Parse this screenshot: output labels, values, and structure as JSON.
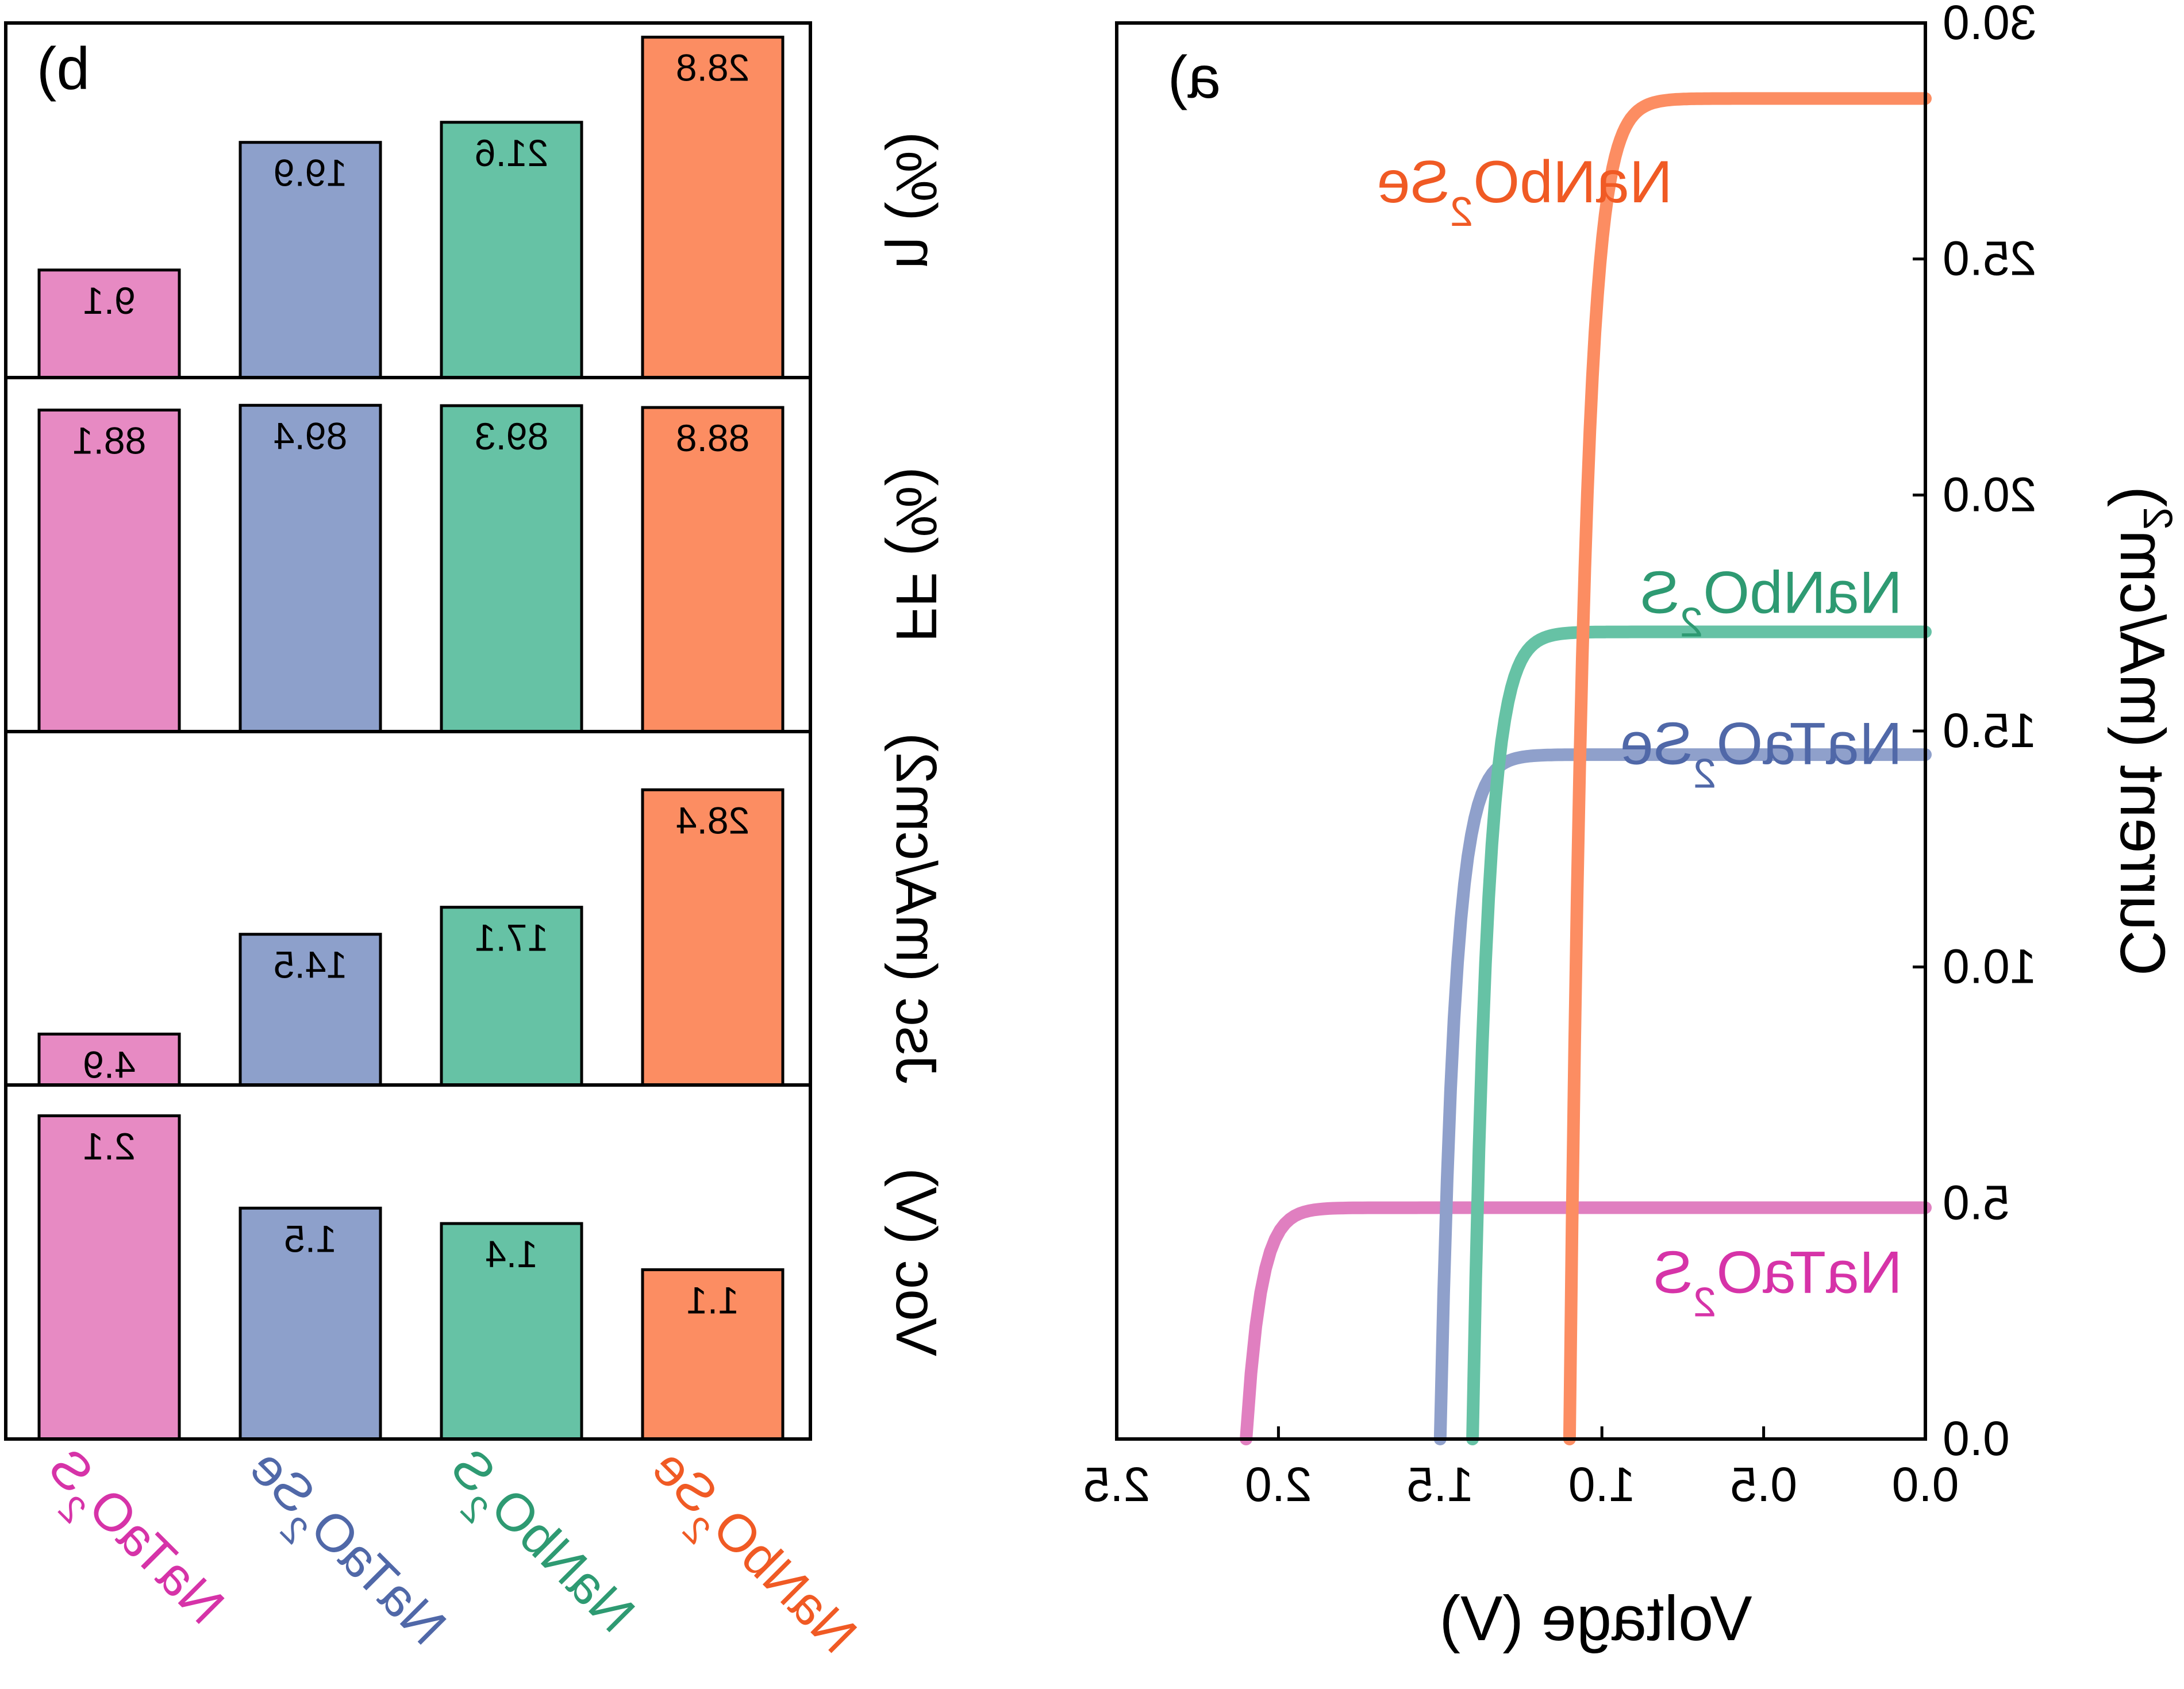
{
  "chart_data": [
    {
      "panel_label": "a)",
      "type": "line",
      "xlabel": "Voltage (V)",
      "ylabel": "Current (mA/cm2)",
      "xlim": [
        0.0,
        2.5
      ],
      "ylim": [
        0.0,
        30.0
      ],
      "xticks": [
        "0.0",
        "0.5",
        "1.0",
        "1.5",
        "2.0",
        "2.5"
      ],
      "yticks": [
        "0.0",
        "5.0",
        "10.0",
        "15.0",
        "20.0",
        "25.0",
        "30.0"
      ],
      "series": [
        {
          "name": "NaTaO2S",
          "color": "#e07fc0",
          "label_color": "#d633a8",
          "voc": 2.1,
          "jsc": 4.9
        },
        {
          "name": "NaTaO2Se",
          "color": "#8fa0cb",
          "label_color": "#5068a8",
          "voc": 1.5,
          "jsc": 14.5
        },
        {
          "name": "NaNbO2S",
          "color": "#66c2a5",
          "label_color": "#2e9a72",
          "voc": 1.4,
          "jsc": 17.1
        },
        {
          "name": "NaNbO2Se",
          "color": "#fc8d62",
          "label_color": "#f05a24",
          "voc": 1.1,
          "jsc": 28.4
        }
      ]
    },
    {
      "panel_label": "b)",
      "type": "bar",
      "categories": [
        "NaTaO2S",
        "NaTaO2Se",
        "NaNbO2S",
        "NaNbO2Se"
      ],
      "category_colors": [
        "#e78ac3",
        "#8da0cb",
        "#66c2a5",
        "#fc8d62"
      ],
      "panels": [
        {
          "label": "η (%)",
          "values": [
            9.1,
            19.9,
            21.6,
            28.8
          ],
          "value_labels": [
            "9.1",
            "19.9",
            "21.6",
            "28.8"
          ],
          "ylim": [
            0,
            30
          ]
        },
        {
          "label": "FF (%)",
          "values": [
            88.1,
            89.4,
            89.3,
            88.8
          ],
          "value_labels": [
            "88.1",
            "89.4",
            "89.3",
            "88.8"
          ],
          "ylim": [
            0,
            97
          ]
        },
        {
          "label": "Jsc (mA/cm2)",
          "values": [
            4.9,
            14.5,
            17.1,
            28.4
          ],
          "value_labels": [
            "4.9",
            "14.5",
            "17.1",
            "28.4"
          ],
          "ylim": [
            0,
            34
          ]
        },
        {
          "label": "Voc (V)",
          "values": [
            2.1,
            1.5,
            1.4,
            1.1
          ],
          "value_labels": [
            "2.1",
            "1.5",
            "1.4",
            "1.1"
          ],
          "ylim": [
            0,
            2.3
          ]
        }
      ]
    }
  ]
}
